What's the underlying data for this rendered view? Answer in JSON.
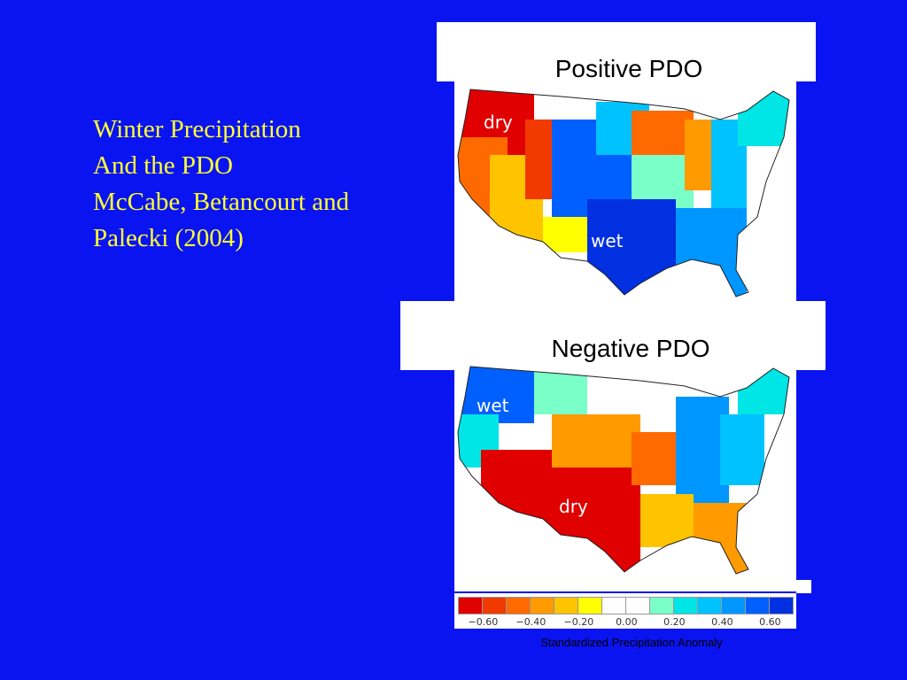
{
  "slide": {
    "title_lines": [
      "Winter Precipitation",
      "And the PDO",
      "McCabe, Betancourt and",
      "Palecki (2004)"
    ]
  },
  "panels": {
    "positive": {
      "title": "Positive PDO",
      "label_dry": "dry",
      "label_wet": "wet"
    },
    "negative": {
      "title": "Negative PDO",
      "label_wet": "wet",
      "label_dry": "dry"
    }
  },
  "legend": {
    "ticks": [
      "−0.60",
      "−0.40",
      "−0.20",
      "0.00",
      "0.20",
      "0.40",
      "0.60"
    ],
    "colors": [
      "#e00000",
      "#f03a00",
      "#ff6a00",
      "#ff9a00",
      "#ffc400",
      "#ffff00",
      "#ffffff",
      "#ffffff",
      "#7affc8",
      "#00e5e5",
      "#00c2ff",
      "#0096ff",
      "#0060ff",
      "#0030e0"
    ],
    "caption": "Standardized Precipitation Anomaly"
  }
}
